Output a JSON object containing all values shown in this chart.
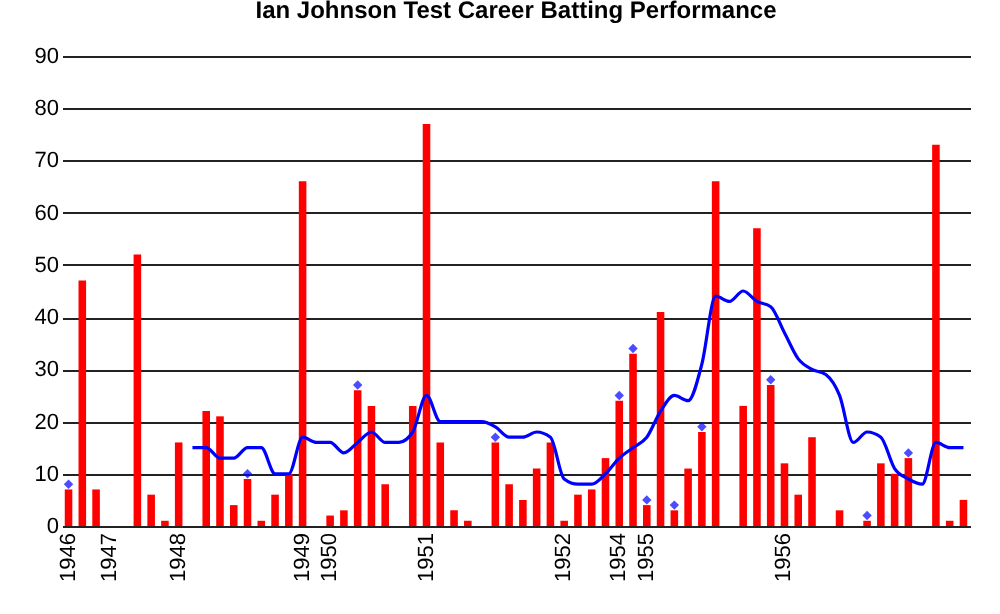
{
  "chart_data": {
    "type": "bar",
    "title": "Ian Johnson Test Career Batting Performance",
    "categories": [
      "1946",
      null,
      null,
      "1947",
      null,
      null,
      null,
      null,
      "1948",
      null,
      null,
      null,
      null,
      null,
      null,
      null,
      null,
      "1949",
      null,
      "1950",
      null,
      null,
      null,
      null,
      null,
      null,
      "1951",
      null,
      null,
      null,
      null,
      null,
      null,
      null,
      null,
      null,
      "1952",
      null,
      null,
      null,
      "1954",
      null,
      "1955",
      null,
      null,
      null,
      null,
      null,
      null,
      null,
      null,
      null,
      "1956",
      null,
      null,
      null,
      null,
      null,
      null,
      null,
      null,
      null,
      null,
      null,
      null,
      null
    ],
    "series": [
      {
        "color": "#ff0000",
        "values": [
          7,
          47,
          7,
          0,
          0,
          52,
          6,
          1,
          16,
          0,
          22,
          21,
          4,
          9,
          1,
          6,
          10,
          66,
          0,
          2,
          3,
          26,
          23,
          8,
          0,
          23,
          77,
          16,
          3,
          1,
          0,
          16,
          8,
          5,
          11,
          16,
          1,
          6,
          7,
          13,
          24,
          33,
          4,
          41,
          3,
          11,
          18,
          66,
          0,
          23,
          57,
          27,
          12,
          6,
          17,
          0,
          3,
          0,
          1,
          12,
          10,
          13,
          0,
          73,
          1,
          5
        ]
      },
      {
        "type": "line",
        "color": "#0000ff",
        "values": [
          null,
          null,
          null,
          null,
          null,
          null,
          null,
          null,
          null,
          15,
          15,
          13,
          13,
          15,
          15,
          10,
          10,
          17,
          16,
          16,
          14,
          16,
          18,
          16,
          16,
          18,
          25,
          20,
          20,
          20,
          20,
          19,
          17,
          17,
          18,
          17,
          9,
          8,
          8,
          10,
          13,
          15,
          17,
          22,
          25,
          24,
          31,
          44,
          43,
          45,
          43,
          42,
          37,
          32,
          30,
          29,
          25,
          16,
          18,
          17,
          11,
          9,
          8,
          16,
          15,
          15
        ]
      },
      {
        "type": "scatter",
        "color": "#0000ff",
        "marker": "diamond",
        "values": [
          8,
          null,
          null,
          null,
          null,
          null,
          null,
          null,
          null,
          null,
          null,
          null,
          null,
          10,
          null,
          null,
          null,
          null,
          null,
          null,
          null,
          27,
          null,
          null,
          null,
          null,
          null,
          null,
          null,
          null,
          null,
          17,
          null,
          null,
          null,
          null,
          null,
          null,
          null,
          null,
          25,
          34,
          5,
          null,
          4,
          null,
          19,
          null,
          null,
          null,
          null,
          28,
          null,
          null,
          null,
          null,
          null,
          null,
          2,
          null,
          null,
          14,
          null,
          null,
          null,
          null
        ]
      }
    ],
    "ylim": [
      0,
      90
    ],
    "yticks": [
      0,
      10,
      20,
      30,
      40,
      50,
      60,
      70,
      80,
      90
    ],
    "grid": "y"
  }
}
